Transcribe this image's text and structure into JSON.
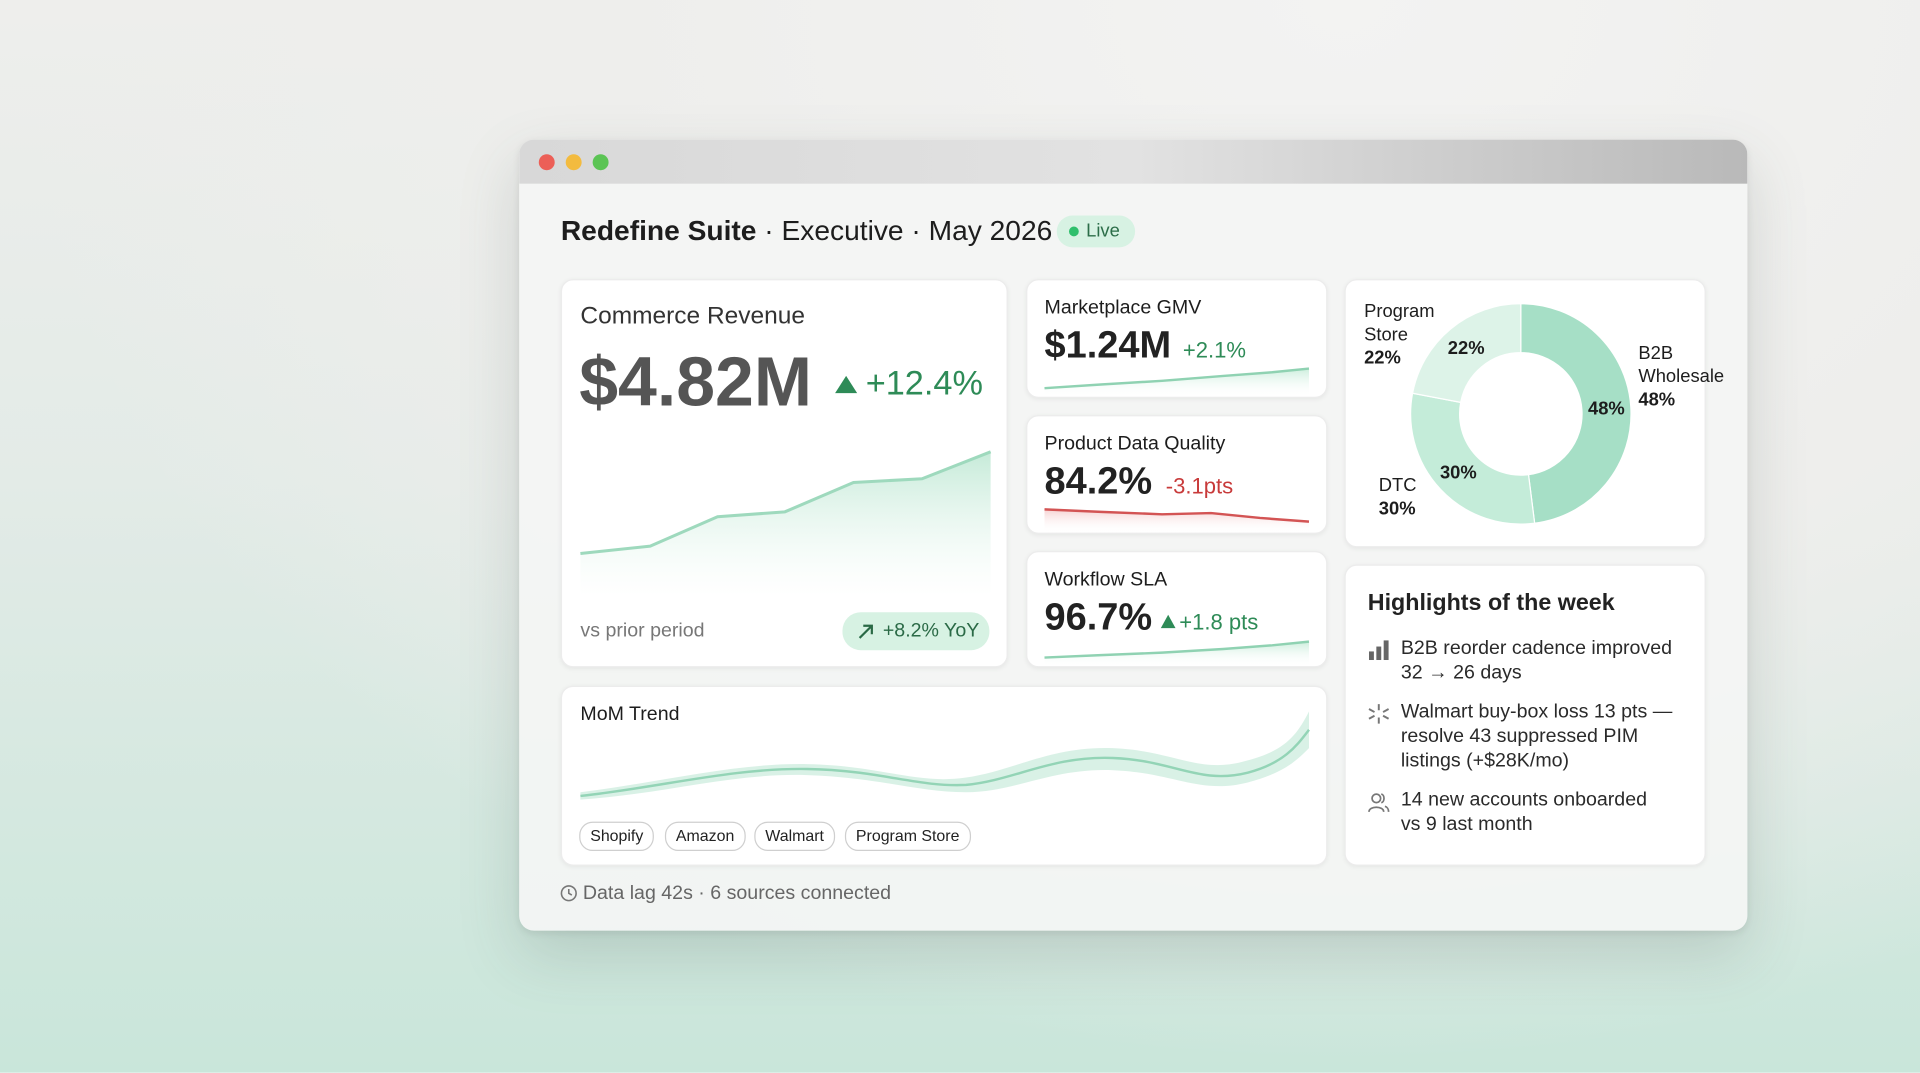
{
  "window": {
    "title_bold": "Redefine Suite",
    "title_rest": "· Executive · May 2026",
    "status": "Live"
  },
  "revenue": {
    "label": "Commerce Revenue",
    "value": "$4.82M",
    "change": "+12.4%",
    "note": "vs prior period",
    "yoy": "+8.2% YoY"
  },
  "kpis": [
    {
      "label": "Marketplace GMV",
      "value": "$1.24M",
      "change": "+2.1%"
    },
    {
      "label": "Product Data Quality",
      "value": "84.2%",
      "change": "-3.1pts"
    },
    {
      "label": "Workflow SLA",
      "value": "96.7%",
      "change": "+1.8 pts"
    }
  ],
  "chart_data": {
    "type": "pie",
    "categories": [
      "B2B Wholesale",
      "DTC",
      "Program Store"
    ],
    "values": [
      48,
      30,
      22
    ],
    "value_labels": [
      "48%",
      "30%",
      "22%"
    ],
    "colors": [
      "#a6dfc6",
      "#c4ecd9",
      "#ddf3e8"
    ]
  },
  "highlights": {
    "title": "Highlights of the week",
    "items": [
      "B2B reorder cadence improved 32 → 26 days",
      "Walmart buy-box loss 13 pts — resolve 43 suppressed PIM listings (+$28K/mo)",
      "14 new accounts onboarded vs 9 last month"
    ]
  },
  "trend": {
    "title": "MoM Trend",
    "tags": [
      "Shopify",
      "Amazon",
      "Walmart",
      "Program Store"
    ]
  },
  "footer": "Data lag 42s · 6 sources connected"
}
